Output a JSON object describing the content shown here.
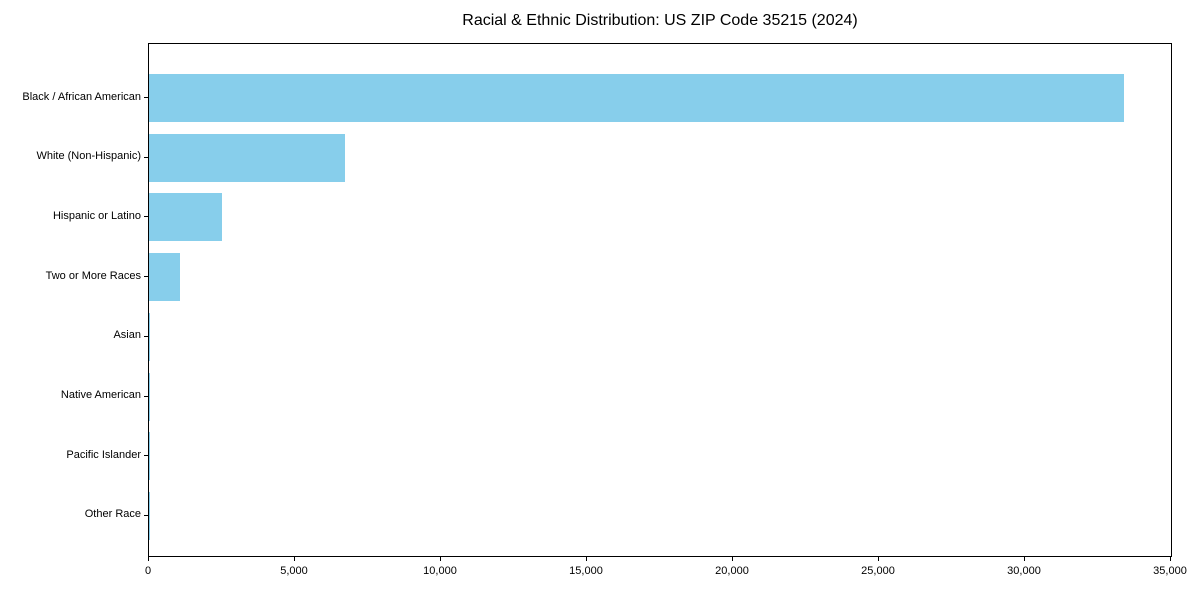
{
  "title": "Racial & Ethnic Distribution: US ZIP Code 35215 (2024)",
  "colors": {
    "bar": "#87CEEB",
    "axis": "#000000",
    "text": "#000000",
    "background": "#FFFFFF"
  },
  "chart_data": {
    "type": "bar",
    "orientation": "horizontal",
    "title": "Racial & Ethnic Distribution: US ZIP Code 35215 (2024)",
    "categories": [
      "Black / African American",
      "White (Non-Hispanic)",
      "Hispanic or Latino",
      "Two or More Races",
      "Asian",
      "Native American",
      "Pacific Islander",
      "Other Race"
    ],
    "values": [
      33400,
      6700,
      2500,
      1060,
      40,
      15,
      5,
      10
    ],
    "xlabel": "",
    "ylabel": "",
    "xlim": [
      0,
      35000
    ],
    "x_ticks": [
      0,
      5000,
      10000,
      15000,
      20000,
      25000,
      30000,
      35000
    ],
    "x_tick_labels": [
      "0",
      "5,000",
      "10,000",
      "15,000",
      "20,000",
      "25,000",
      "30,000",
      "35,000"
    ],
    "grid": false,
    "legend": null,
    "bar_color": "#87CEEB"
  }
}
